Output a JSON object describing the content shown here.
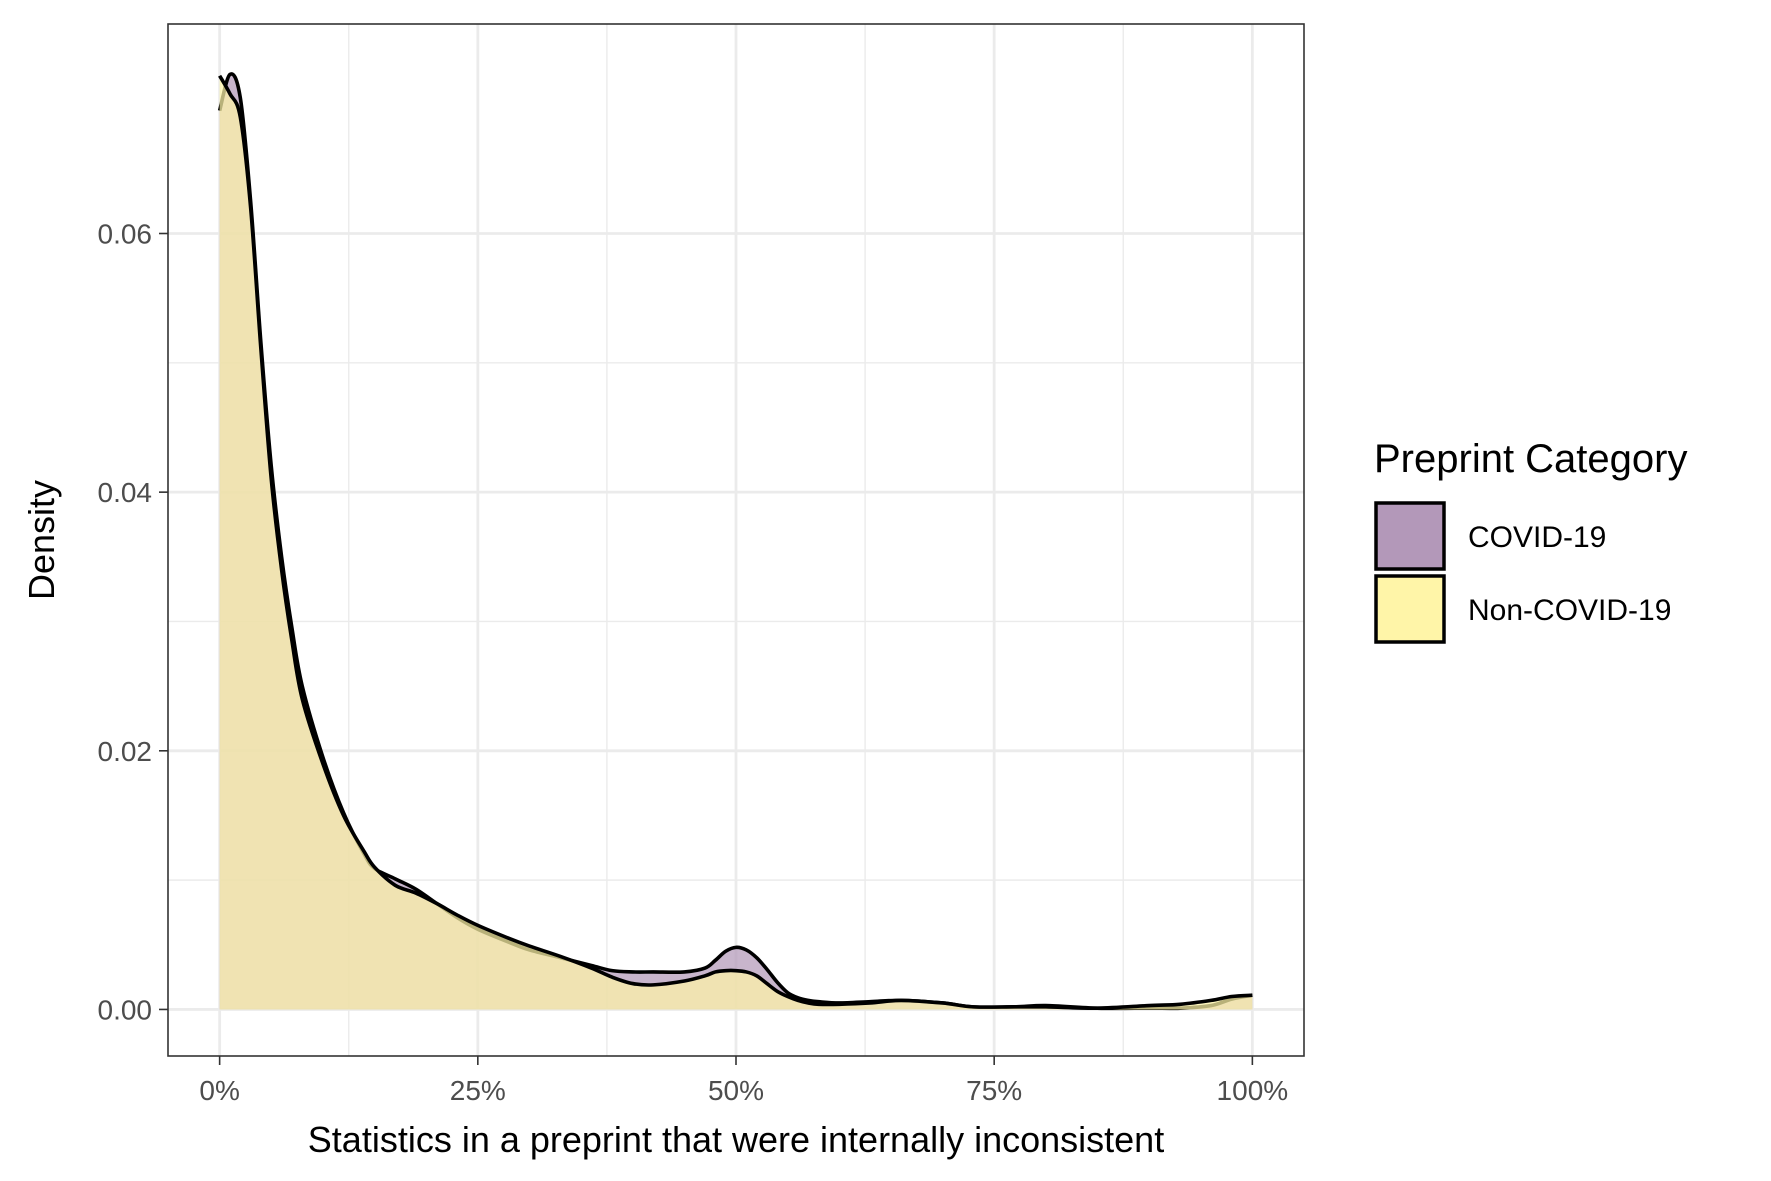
{
  "chart_data": {
    "type": "area",
    "title": "",
    "xlabel": "Statistics in a preprint that were internally inconsistent",
    "ylabel": "Density",
    "xlim": [
      -5,
      105
    ],
    "ylim": [
      -0.0036,
      0.0762
    ],
    "x_ticks": [
      0,
      25,
      50,
      75,
      100
    ],
    "x_tick_labels": [
      "0%",
      "25%",
      "50%",
      "75%",
      "100%"
    ],
    "y_ticks": [
      0,
      0.02,
      0.04,
      0.06
    ],
    "y_tick_labels": [
      "0.00",
      "0.02",
      "0.04",
      "0.06"
    ],
    "grid": true,
    "legend": {
      "title": "Preprint Category",
      "position": "right",
      "entries": [
        "COVID-19",
        "Non-COVID-19"
      ]
    },
    "series": [
      {
        "name": "COVID-19",
        "color": "#b398b9",
        "x": [
          0,
          1,
          2,
          3,
          4,
          5,
          6,
          7,
          8,
          10,
          12,
          14,
          15,
          17,
          19,
          21,
          23,
          25,
          28,
          30,
          33,
          36,
          38,
          40,
          42,
          45,
          47,
          48,
          49,
          50,
          51,
          52,
          53,
          54,
          55,
          56,
          57,
          58,
          60,
          63,
          66,
          70,
          73,
          77,
          80,
          85,
          90,
          93,
          96,
          98,
          100
        ],
        "y": [
          0.0695,
          0.0723,
          0.0705,
          0.0625,
          0.0515,
          0.042,
          0.035,
          0.0295,
          0.025,
          0.0195,
          0.0152,
          0.012,
          0.0109,
          0.0101,
          0.0093,
          0.0082,
          0.0071,
          0.0062,
          0.0052,
          0.0046,
          0.004,
          0.0034,
          0.003,
          0.0029,
          0.0029,
          0.0029,
          0.0032,
          0.0038,
          0.0045,
          0.0048,
          0.0046,
          0.004,
          0.0031,
          0.0021,
          0.0013,
          0.0009,
          0.0007,
          0.0006,
          0.0005,
          0.0006,
          0.0007,
          0.0005,
          0.0002,
          0.0002,
          0.0003,
          0.0001,
          0.0001,
          0.0001,
          0.0003,
          0.0008,
          0.0011
        ]
      },
      {
        "name": "Non-COVID-19",
        "color": "#fff5a8",
        "x": [
          0,
          1,
          2,
          3,
          4,
          5,
          6,
          7,
          8,
          10,
          12,
          14,
          15,
          17,
          19,
          21,
          23,
          25,
          28,
          30,
          33,
          36,
          38,
          40,
          42,
          45,
          47,
          48,
          49,
          50,
          51,
          52,
          53,
          54,
          55,
          56,
          57,
          58,
          60,
          63,
          66,
          70,
          73,
          77,
          80,
          85,
          90,
          93,
          96,
          98,
          100
        ],
        "y": [
          0.0722,
          0.0708,
          0.069,
          0.062,
          0.051,
          0.041,
          0.034,
          0.0285,
          0.024,
          0.019,
          0.015,
          0.0122,
          0.011,
          0.0096,
          0.009,
          0.0082,
          0.0073,
          0.0065,
          0.0055,
          0.0049,
          0.0041,
          0.0032,
          0.0025,
          0.002,
          0.0019,
          0.0022,
          0.0026,
          0.0029,
          0.003,
          0.003,
          0.0029,
          0.0026,
          0.002,
          0.0014,
          0.001,
          0.0007,
          0.0005,
          0.0004,
          0.0004,
          0.0005,
          0.0007,
          0.0005,
          0.0002,
          0.0002,
          0.0002,
          0.0001,
          0.0003,
          0.0004,
          0.0007,
          0.001,
          0.0011
        ]
      }
    ]
  }
}
